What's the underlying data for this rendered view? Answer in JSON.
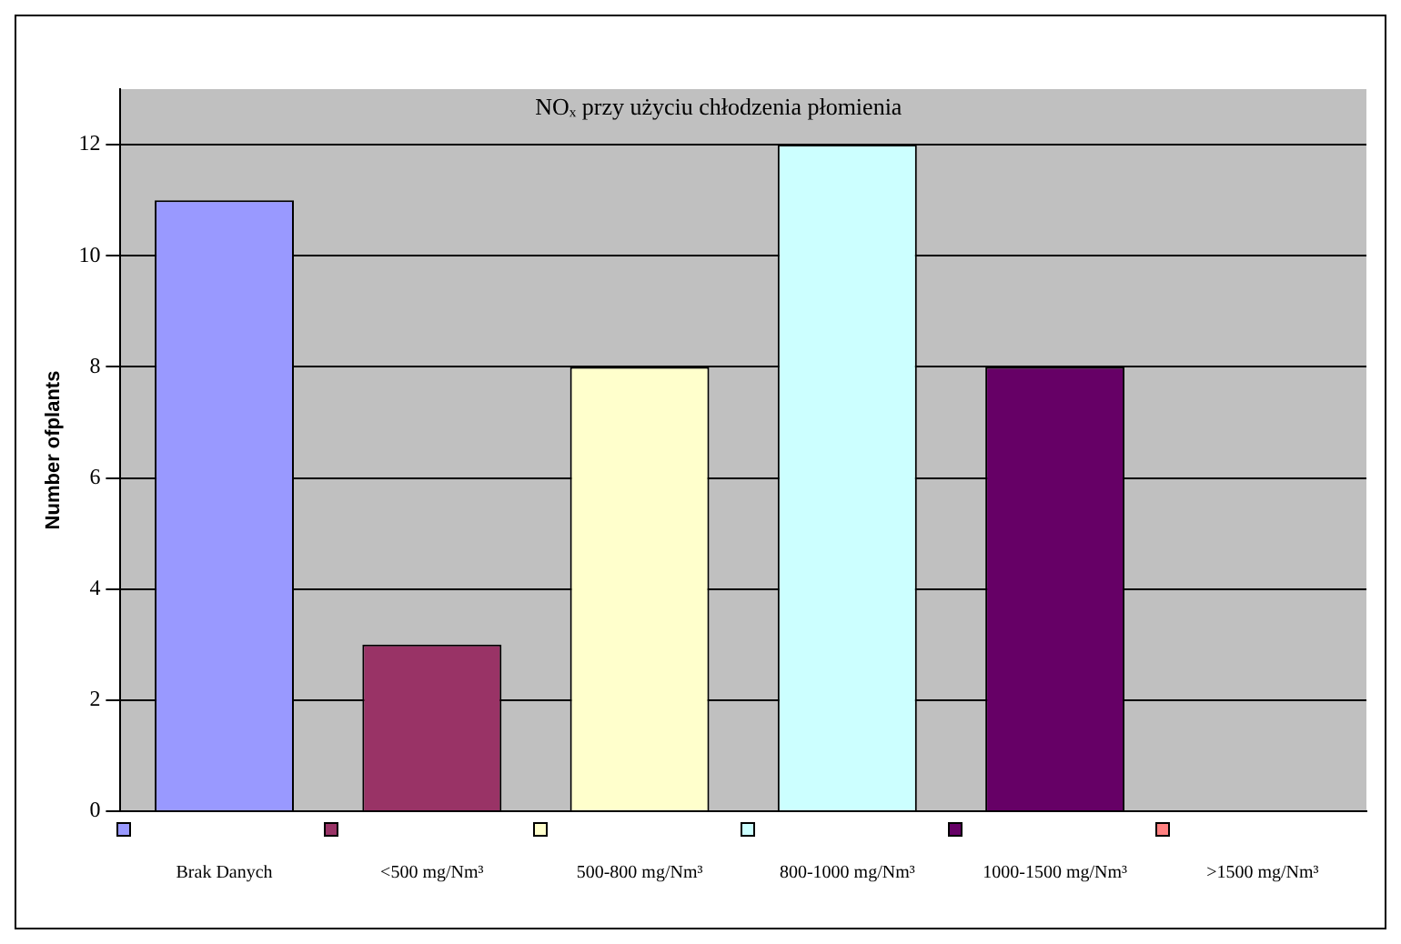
{
  "chart_data": {
    "type": "bar",
    "title": "NOₓ przy użyciu chłodzenia płomienia",
    "ylabel": "Number ofplants",
    "categories": [
      "Brak Danych",
      "<500 mg/Nm³",
      "500-800 mg/Nm³",
      "800-1000 mg/Nm³",
      "1000-1500 mg/Nm³",
      ">1500 mg/Nm³"
    ],
    "values": [
      11,
      3,
      8,
      12,
      8,
      0
    ],
    "colors": [
      "#9999ff",
      "#993366",
      "#ffffcc",
      "#ccffff",
      "#660066",
      "#ff8080"
    ],
    "ylim": [
      0,
      13
    ],
    "yticks": [
      0,
      2,
      4,
      6,
      8,
      10,
      12
    ],
    "grid": "y"
  }
}
